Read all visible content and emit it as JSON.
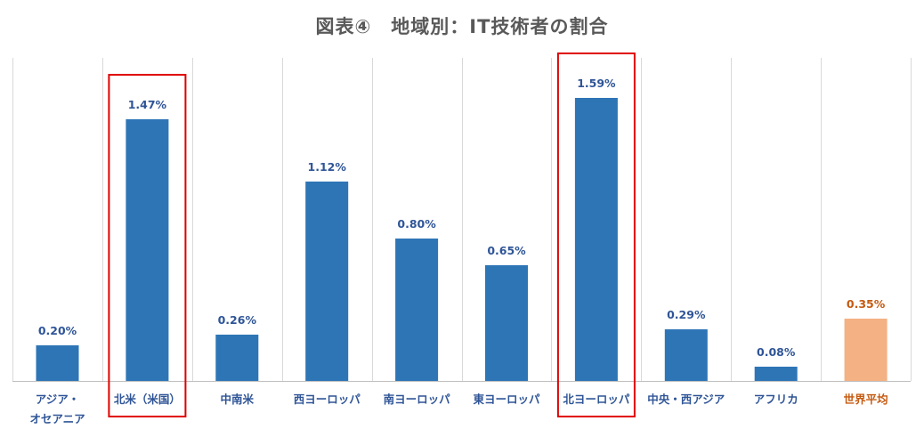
{
  "chart_data": {
    "type": "bar",
    "title": "図表④　地域別：IT技術者の割合",
    "categories": [
      "アジア・オセアニア",
      "北米（米国）",
      "中南米",
      "西ヨーロッパ",
      "南ヨーロッパ",
      "東ヨーロッパ",
      "北ヨーロッパ",
      "中央・西アジア",
      "アフリカ",
      "世界平均"
    ],
    "category_lines": [
      [
        "アジア・",
        "オセアニア"
      ],
      [
        "北米（米国）"
      ],
      [
        "中南米"
      ],
      [
        "西ヨーロッパ"
      ],
      [
        "南ヨーロッパ"
      ],
      [
        "東ヨーロッパ"
      ],
      [
        "北ヨーロッパ"
      ],
      [
        "中央・西アジア"
      ],
      [
        "アフリカ"
      ],
      [
        "世界平均"
      ]
    ],
    "values": [
      0.2,
      1.47,
      0.26,
      1.12,
      0.8,
      0.65,
      1.59,
      0.29,
      0.08,
      0.35
    ],
    "data_labels": [
      "0.20%",
      "1.47%",
      "0.26%",
      "1.12%",
      "0.80%",
      "0.65%",
      "1.59%",
      "0.29%",
      "0.08%",
      "0.35%"
    ],
    "unit": "%",
    "xlabel": "",
    "ylabel": "",
    "ylim": [
      0,
      1.8
    ],
    "grid": "vertical separators",
    "legend": "none",
    "highlighted_categories": [
      "北米（米国）",
      "北ヨーロッパ"
    ],
    "colors": {
      "bar": "#2E75B6",
      "average_bar": "#F4B183",
      "label": "#2F5597",
      "average_label": "#C55A11",
      "highlight_box": "#E00000",
      "separator": "#D9D9D9",
      "baseline": "#BFBFBF",
      "title": "#595959"
    }
  }
}
